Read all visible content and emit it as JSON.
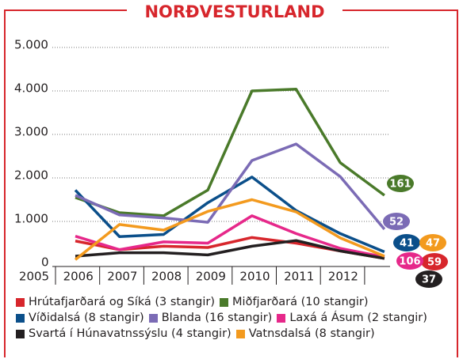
{
  "chart_data": {
    "type": "line",
    "title": "NORÐVESTURLAND",
    "categories": [
      "2005",
      "2006",
      "2007",
      "2008",
      "2009",
      "2010",
      "2011",
      "2012"
    ],
    "ylim": [
      0,
      5000
    ],
    "yticks": [
      0,
      {
        "value": 1000,
        "label": "1.000"
      },
      {
        "value": 2000,
        "label": "2.000"
      },
      {
        "value": 3000,
        "label": "3.000"
      },
      {
        "value": 4000,
        "label": "4.000"
      },
      {
        "value": 5000,
        "label": "5.000"
      }
    ],
    "grid": true,
    "series": [
      {
        "name": "Hrútafjarðará og Síká (3 stangir)",
        "color": "#d7262c",
        "values": [
          550,
          350,
          430,
          400,
          630,
          500,
          320,
          150
        ],
        "end_label": 59
      },
      {
        "name": "Miðfjarðará (10 stangir)",
        "color": "#4a7a2a",
        "values": [
          1550,
          1200,
          1130,
          1720,
          4000,
          4040,
          2350,
          1600
        ],
        "end_label": 161
      },
      {
        "name": "Víðidalsá (8 stangir)",
        "color": "#0b4f8a",
        "values": [
          1720,
          650,
          700,
          1430,
          2020,
          1250,
          720,
          300
        ],
        "end_label": 41
      },
      {
        "name": "Blanda (16 stangir)",
        "color": "#7b6bb5",
        "values": [
          1600,
          1150,
          1080,
          980,
          2400,
          2780,
          2030,
          820
        ],
        "end_label": 52
      },
      {
        "name": "Laxá á Ásum (2 stangir)",
        "color": "#e6288a",
        "values": [
          660,
          350,
          530,
          500,
          1130,
          720,
          380,
          180
        ],
        "end_label": 106
      },
      {
        "name": "Svartá í Húnavatnssýslu (4 stangir)",
        "color": "#231f20",
        "values": [
          200,
          280,
          280,
          230,
          430,
          560,
          320,
          150
        ],
        "end_label": 37
      },
      {
        "name": "Vatnsdalsá (8 stangir)",
        "color": "#f39a1e",
        "values": [
          120,
          930,
          800,
          1230,
          1500,
          1220,
          620,
          200
        ],
        "end_label": 47
      }
    ]
  }
}
